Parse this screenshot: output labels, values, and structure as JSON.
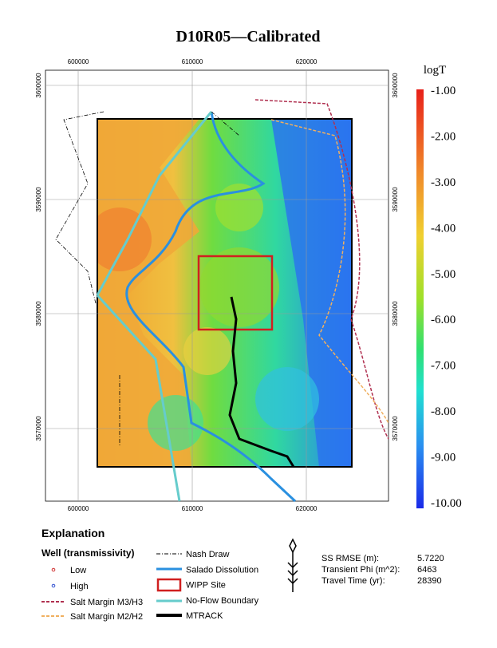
{
  "title": "D10R05—Calibrated",
  "axes": {
    "xticks": [
      600000,
      610000,
      620000
    ],
    "yticks": [
      3600000,
      3590000,
      3580000,
      3570000
    ]
  },
  "colorbar": {
    "title": "logT",
    "labels": [
      "-1.00",
      "-2.00",
      "-3.00",
      "-4.00",
      "-5.00",
      "-6.00",
      "-7.00",
      "-8.00",
      "-9.00",
      "-10.00"
    ]
  },
  "legend": {
    "heading": "Explanation",
    "wells_heading": "Well (transmissivity)",
    "items_left": [
      "Low",
      "High",
      "Salt Margin M3/H3",
      "Salt Margin M2/H2"
    ],
    "items_right": [
      "Nash Draw",
      "Salado Dissolution",
      "WIPP Site",
      "No-Flow Boundary",
      "MTRACK"
    ]
  },
  "stats": {
    "rows": [
      [
        "SS RMSE (m):",
        "5.7220"
      ],
      [
        "Transient Phi (m^2):",
        6463
      ],
      [
        "Travel Time (yr):",
        28390
      ]
    ]
  }
}
